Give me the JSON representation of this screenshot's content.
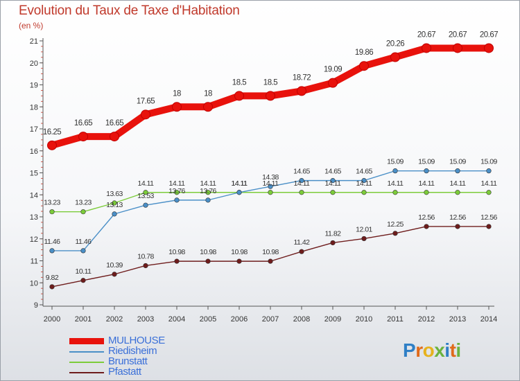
{
  "chart_data": {
    "type": "line",
    "title": "Evolution du Taux de Taxe d'Habitation",
    "subtitle": "(en %)",
    "x": [
      "2000",
      "2001",
      "2002",
      "2003",
      "2004",
      "2005",
      "2006",
      "2007",
      "2008",
      "2009",
      "2010",
      "2011",
      "2012",
      "2013",
      "2014"
    ],
    "yticks": [
      "9",
      "10",
      "11",
      "12",
      "13",
      "14",
      "15",
      "16",
      "17",
      "18",
      "19",
      "20",
      "21"
    ],
    "ylim": [
      9,
      21
    ],
    "grid": false,
    "legend_position": "bottom-left",
    "series": [
      {
        "name": "MULHOUSE",
        "color": "#e8120c",
        "values": [
          16.25,
          16.65,
          16.65,
          17.65,
          18,
          18,
          18.5,
          18.5,
          18.72,
          19.09,
          19.86,
          20.26,
          20.67,
          20.67,
          20.67
        ],
        "labels": [
          "16.25",
          "16.65",
          "16.65",
          "17.65",
          "18",
          "18",
          "18.5",
          "18.5",
          "18.72",
          "19.09",
          "19.86",
          "20.26",
          "20.67",
          "20.67",
          "20.67"
        ]
      },
      {
        "name": "Riedisheim",
        "color": "#4a8fc7",
        "values": [
          11.46,
          11.46,
          13.13,
          13.53,
          13.76,
          13.76,
          14.11,
          14.38,
          14.65,
          14.65,
          14.65,
          15.09,
          15.09,
          15.09,
          15.09
        ],
        "labels": [
          "11.46",
          "11.46",
          "13.13",
          "13.53",
          "13.76",
          "13.76",
          "14.11",
          "14.38",
          "14.65",
          "14.65",
          "14.65",
          "15.09",
          "15.09",
          "15.09",
          "15.09"
        ]
      },
      {
        "name": "Brunstatt",
        "color": "#7ccc3a",
        "values": [
          13.23,
          13.23,
          13.63,
          14.11,
          14.11,
          14.11,
          14.11,
          14.11,
          14.11,
          14.11,
          14.11,
          14.11,
          14.11,
          14.11,
          14.11
        ],
        "labels": [
          "13.23",
          "13.23",
          "13.63",
          "14.11",
          "14.11",
          "14.11",
          "14.11",
          "14.11",
          "14.11",
          "14.11",
          "14.11",
          "14.11",
          "14.11",
          "14.11",
          "14.11"
        ]
      },
      {
        "name": "Pfastatt",
        "color": "#6e1c1c",
        "values": [
          9.82,
          10.11,
          10.39,
          10.78,
          10.98,
          10.98,
          10.98,
          10.98,
          11.42,
          11.82,
          12.01,
          12.25,
          12.56,
          12.56,
          12.56
        ],
        "labels": [
          "9.82",
          "10.11",
          "10.39",
          "10.78",
          "10.98",
          "10.98",
          "10.98",
          "10.98",
          "11.42",
          "11.82",
          "12.01",
          "12.25",
          "12.56",
          "12.56",
          "12.56"
        ]
      }
    ]
  },
  "logo": {
    "letters": [
      "P",
      "r",
      "o",
      "x",
      "i",
      "t",
      "i"
    ],
    "colors": [
      "#2f7fc6",
      "#e06a1a",
      "#e6b21e",
      "#6ab23e",
      "#2f7fc6",
      "#e06a1a",
      "#6ab23e"
    ]
  }
}
